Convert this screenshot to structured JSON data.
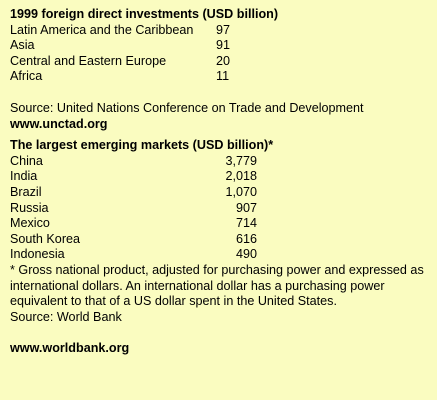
{
  "fdi": {
    "heading": "1999 foreign direct investments (USD billion)",
    "rows": [
      {
        "label": "Latin America and the Caribbean",
        "value": "97"
      },
      {
        "label": "Asia",
        "value": "91"
      },
      {
        "label": "Central and Eastern Europe",
        "value": "20"
      },
      {
        "label": "Africa",
        "value": "11"
      }
    ],
    "source": "Source: United Nations Conference on Trade and Development",
    "url": "www.unctad.org"
  },
  "markets": {
    "heading": "The largest emerging markets (USD billion)*",
    "rows": [
      {
        "label": "China",
        "value": "3,779"
      },
      {
        "label": "India",
        "value": "2,018"
      },
      {
        "label": "Brazil",
        "value": "1,070"
      },
      {
        "label": "Russia",
        "value": "907"
      },
      {
        "label": "Mexico",
        "value": "714"
      },
      {
        "label": "South Korea",
        "value": "616"
      },
      {
        "label": "Indonesia",
        "value": "490"
      }
    ],
    "footnote": "* Gross national product, adjusted for purchasing power and expressed as international dollars. An international dollar has a purchasing power equivalent to that of a US dollar spent in the United States.",
    "source": "Source: World Bank",
    "url": "www.worldbank.org"
  }
}
